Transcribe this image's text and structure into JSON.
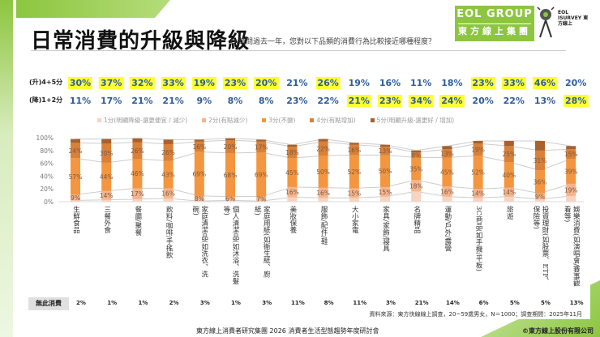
{
  "header": {
    "title": "日常消費的升級與降級",
    "question": "Q.請問過去一年，您對以下品類的消費行為比較接近哪種程度？",
    "logo_group_en": "EOL GROUP",
    "logo_group_zh": "東方線上集團",
    "logo_survey": "EOL ISURVEY 東方線上"
  },
  "summary": {
    "up_label": "(升)4+5分",
    "down_label": "(降)1+2分",
    "up": [
      "30%",
      "37%",
      "32%",
      "33%",
      "19%",
      "23%",
      "20%",
      "21%",
      "26%",
      "19%",
      "16%",
      "11%",
      "18%",
      "23%",
      "33%",
      "46%",
      "20%"
    ],
    "up_highlight": [
      true,
      true,
      true,
      true,
      true,
      true,
      true,
      false,
      true,
      false,
      false,
      false,
      false,
      true,
      true,
      true,
      false
    ],
    "down": [
      "11%",
      "17%",
      "21%",
      "21%",
      "9%",
      "8%",
      "8%",
      "23%",
      "22%",
      "21%",
      "23%",
      "34%",
      "24%",
      "20%",
      "22%",
      "13%",
      "28%"
    ],
    "down_highlight": [
      false,
      false,
      false,
      false,
      false,
      false,
      false,
      false,
      false,
      true,
      true,
      true,
      true,
      false,
      false,
      false,
      true
    ],
    "highlight_color": "#ffff33"
  },
  "chart_data": {
    "type": "bar",
    "stacked": true,
    "ylim": [
      0,
      100
    ],
    "yticks": [
      "0%",
      "20%",
      "40%",
      "60%",
      "80%",
      "100%"
    ],
    "legend_position": "top",
    "categories": [
      "生鮮食品",
      "三餐外食",
      "餐廳/聚餐",
      "飲料/咖啡/手搖飲",
      "家庭清潔品(如洗衣、洗碗)",
      "個人清潔品(如沐浴、洗髮等)",
      "家庭用紙(如衛生紙、廚紙)",
      "美妝保養",
      "服飾/配件/鞋",
      "大小家電",
      "家具/家飾/寢具",
      "名牌精品",
      "運動/戶外/露營",
      "3C商品(如手機/平板)",
      "旅遊",
      "投資理財(如股票、ETF、保險等)",
      "娛樂消費(如演唱會/賽事觀看等)"
    ],
    "series": [
      {
        "name": "1分(明顯降級-選更便宜 / 減少)",
        "color": "#f7d3c2",
        "values": [
          2,
          3,
          4,
          5,
          1,
          2,
          1,
          7,
          6,
          6,
          8,
          16,
          8,
          6,
          8,
          4,
          9
        ],
        "labels": false
      },
      {
        "name": "2分(有點減少)",
        "color": "#f5b48c",
        "values": [
          9,
          14,
          17,
          16,
          8,
          6,
          7,
          16,
          16,
          15,
          15,
          18,
          16,
          14,
          14,
          9,
          19
        ],
        "labels": true
      },
      {
        "name": "3分(不變)",
        "color": "#f3963f",
        "values": [
          57,
          44,
          46,
          43,
          69,
          68,
          69,
          45,
          50,
          52,
          50,
          35,
          45,
          52,
          40,
          36,
          39
        ],
        "labels": true
      },
      {
        "name": "4分(有點增加)",
        "color": "#d98039",
        "values": [
          24,
          30,
          26,
          26,
          16,
          20,
          17,
          18,
          22,
          16,
          13,
          8,
          13,
          19,
          25,
          31,
          15
        ],
        "labels": true
      },
      {
        "name": "5分(明顯升級-選更好 / 增加)",
        "color": "#a8602c",
        "values": [
          6,
          7,
          6,
          7,
          3,
          3,
          3,
          3,
          4,
          3,
          3,
          3,
          5,
          4,
          8,
          15,
          5
        ],
        "labels": false
      }
    ]
  },
  "no_consumption": {
    "label": "無此消費",
    "values": [
      "2%",
      "1%",
      "1%",
      "2%",
      "3%",
      "1%",
      "3%",
      "11%",
      "8%",
      "11%",
      "3%",
      "21%",
      "14%",
      "6%",
      "5%",
      "5%",
      "13%"
    ]
  },
  "source": "資料來源：東方快線線上調查，20~59歲男女，N＝1000；調查期間：2025年11月",
  "footer": "東方線上消費者研究集團 2026 消費者生活型態趨勢年度研討會",
  "copyright": "©東方線上股份有限公司"
}
